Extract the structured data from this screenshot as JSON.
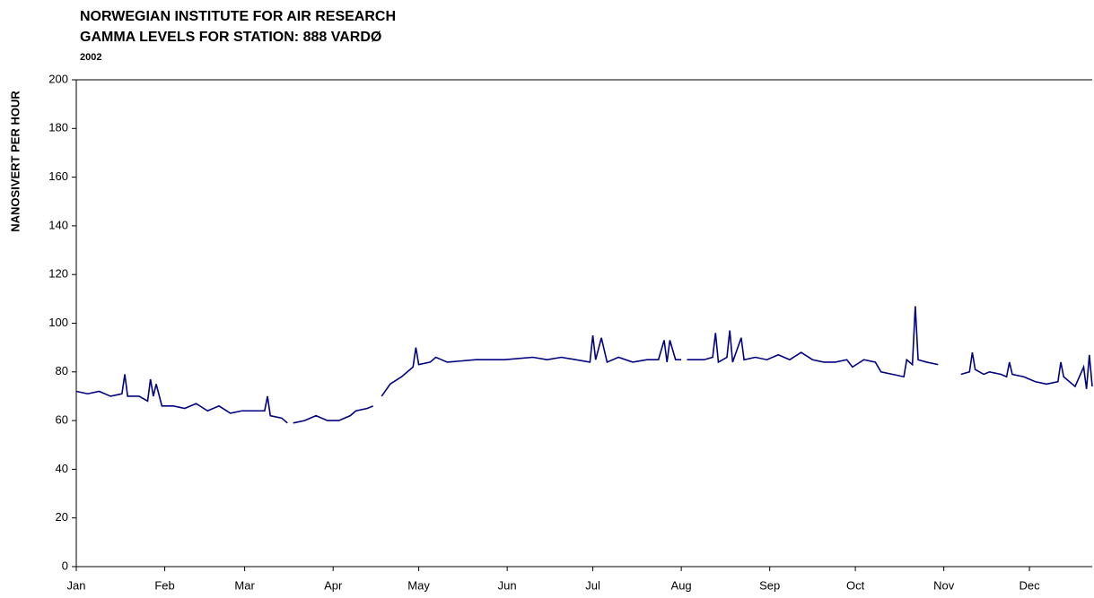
{
  "chart_data": {
    "type": "line",
    "title": "NORWEGIAN INSTITUTE FOR AIR RESEARCH",
    "subtitle": "GAMMA LEVELS FOR STATION:   888 VARDØ",
    "year": "2002",
    "y_label": "NANOSIVERT PER HOUR",
    "x": [
      0,
      4,
      8,
      12,
      16,
      17,
      18,
      22,
      25,
      26,
      27,
      28,
      30,
      34,
      38,
      42,
      46,
      50,
      54,
      58,
      62,
      66,
      67,
      68,
      72,
      74,
      75,
      76,
      80,
      84,
      88,
      92,
      96,
      98,
      102,
      104,
      105,
      107,
      110,
      114,
      118,
      119,
      120,
      124,
      126,
      130,
      140,
      150,
      160,
      165,
      170,
      180,
      181,
      182,
      184,
      186,
      190,
      195,
      200,
      204,
      206,
      207,
      208,
      210,
      212,
      213,
      214,
      220,
      223,
      224,
      225,
      228,
      229,
      230,
      233,
      234,
      238,
      242,
      246,
      250,
      254,
      258,
      262,
      266,
      270,
      272,
      276,
      280,
      282,
      286,
      290,
      291,
      293,
      294,
      295,
      298,
      302,
      303,
      310,
      313,
      314,
      315,
      318,
      320,
      324,
      326,
      327,
      328,
      332,
      336,
      340,
      344,
      345,
      346,
      350,
      353,
      354,
      355,
      356
    ],
    "series": [
      {
        "name": "Gamma",
        "color": "#000080",
        "values": [
          72,
          71,
          72,
          70,
          71,
          79,
          70,
          70,
          68,
          77,
          70,
          75,
          66,
          66,
          65,
          67,
          64,
          66,
          63,
          64,
          64,
          64,
          70,
          62,
          61,
          59,
          null,
          59,
          60,
          62,
          60,
          60,
          62,
          64,
          65,
          66,
          null,
          70,
          75,
          78,
          82,
          90,
          83,
          84,
          86,
          84,
          85,
          85,
          86,
          85,
          86,
          84,
          95,
          85,
          94,
          84,
          86,
          84,
          85,
          85,
          93,
          84,
          93,
          85,
          85,
          null,
          85,
          85,
          86,
          96,
          84,
          86,
          97,
          84,
          94,
          85,
          86,
          85,
          87,
          85,
          88,
          85,
          84,
          84,
          85,
          82,
          85,
          84,
          80,
          79,
          78,
          85,
          83,
          107,
          85,
          84,
          83,
          null,
          79,
          80,
          88,
          81,
          79,
          80,
          79,
          78,
          84,
          79,
          78,
          76,
          75,
          76,
          84,
          78,
          74,
          82,
          73,
          87,
          74
        ]
      }
    ],
    "xlim": [
      0,
      356
    ],
    "xticks": [
      {
        "value": 0,
        "label": "Jan"
      },
      {
        "value": 31,
        "label": "Feb"
      },
      {
        "value": 59,
        "label": "Mar"
      },
      {
        "value": 90,
        "label": "Apr"
      },
      {
        "value": 120,
        "label": "May"
      },
      {
        "value": 151,
        "label": "Jun"
      },
      {
        "value": 181,
        "label": "Jul"
      },
      {
        "value": 212,
        "label": "Aug"
      },
      {
        "value": 243,
        "label": "Sep"
      },
      {
        "value": 273,
        "label": "Oct"
      },
      {
        "value": 304,
        "label": "Nov"
      },
      {
        "value": 334,
        "label": "Dec"
      }
    ],
    "ylim": [
      0,
      200
    ],
    "yticks": [
      0,
      20,
      40,
      60,
      80,
      100,
      120,
      140,
      160,
      180,
      200
    ]
  }
}
